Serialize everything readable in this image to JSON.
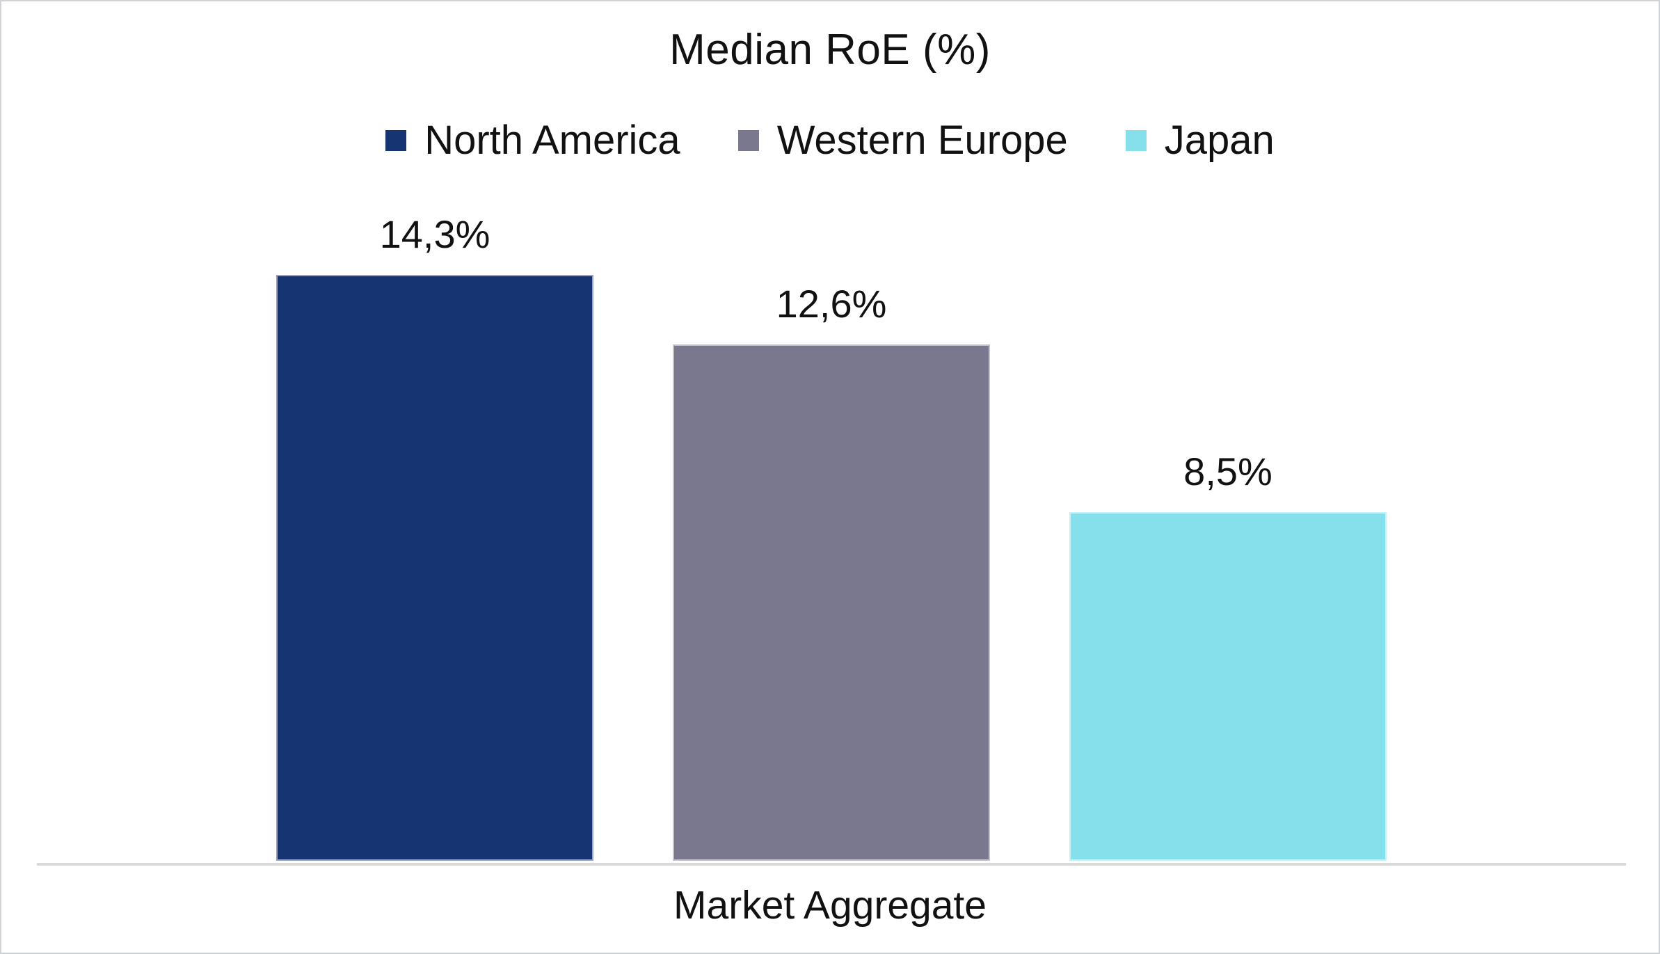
{
  "chart_data": {
    "type": "bar",
    "title": "Median RoE (%)",
    "categories": [
      "Market Aggregate"
    ],
    "series": [
      {
        "name": "North America",
        "value": 14.3,
        "label": "14,3%",
        "color": "#163372"
      },
      {
        "name": "Western Europe",
        "value": 12.6,
        "label": "12,6%",
        "color": "#7A788E"
      },
      {
        "name": "Japan",
        "value": 8.5,
        "label": "8,5%",
        "color": "#86E0EB"
      }
    ],
    "xlabel": "",
    "ylabel": "",
    "ylim": [
      0,
      15
    ],
    "grid": false,
    "y_axis_visible": false,
    "value_format": "comma-decimal-percent",
    "legend_position": "top",
    "axis_line_color": "#D9D9D9",
    "text_color": "#111111"
  }
}
